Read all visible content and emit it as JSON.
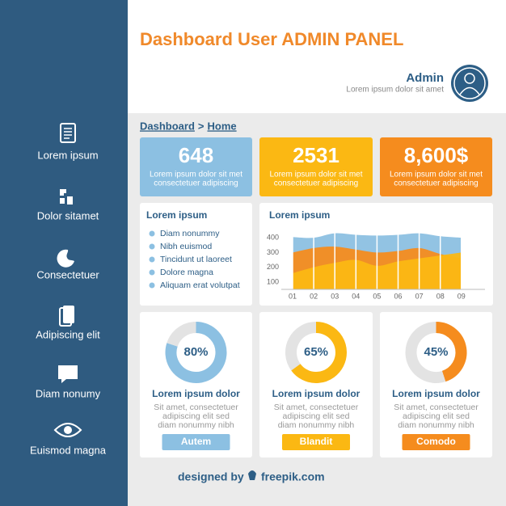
{
  "header": {
    "title": "Dashboard User ADMIN PANEL",
    "user": "Admin",
    "user_subtitle": "Lorem ipsum dolor sit amet"
  },
  "sidebar": {
    "items": [
      "Lorem ipsum",
      "Dolor sitamet",
      "Consectetuer",
      "Adipiscing elit",
      "Diam nonumy",
      "Euismod magna"
    ]
  },
  "breadcrumb": {
    "items": [
      "Dashboard",
      "Home"
    ],
    "separator": ">"
  },
  "stats": [
    {
      "value": "648",
      "text": [
        "Lorem ipsum dolor sit met",
        "consectetuer adipiscing"
      ],
      "color": "#8cc0e2"
    },
    {
      "value": "2531",
      "text": [
        "Lorem ipsum dolor sit met",
        "consectetuer adipiscing"
      ],
      "color": "#fbb813"
    },
    {
      "value": "8,600$",
      "text": [
        "Lorem ipsum dolor sit met",
        "consectetuer adipiscing"
      ],
      "color": "#f58c1e"
    }
  ],
  "list_card": {
    "title": "Lorem ipsum",
    "items": [
      "Diam nonummy",
      "Nibh euismod",
      "Tincidunt ut laoreet",
      "Dolore magna",
      "Aliquam erat volutpat"
    ]
  },
  "chart_data": [
    {
      "type": "area",
      "title": "Lorem ipsum",
      "categories": [
        "01",
        "02",
        "03",
        "04",
        "05",
        "06",
        "07",
        "08",
        "09"
      ],
      "ylim": [
        50,
        450
      ],
      "yticks": [
        100,
        200,
        300,
        400
      ],
      "series": [
        {
          "color": "#8cc0e2",
          "values": [
            405,
            400,
            430,
            420,
            415,
            420,
            430,
            410,
            400
          ]
        },
        {
          "color": "#f58c1e",
          "values": [
            300,
            330,
            340,
            320,
            300,
            310,
            330,
            290,
            260
          ]
        },
        {
          "color": "#fbb813",
          "values": [
            160,
            200,
            230,
            250,
            210,
            240,
            260,
            280,
            300
          ]
        }
      ]
    },
    {
      "type": "donut",
      "values": [
        80,
        20
      ],
      "value_labels": [
        "80%",
        null
      ],
      "colors": [
        "#8cc0e2",
        "#e3e3e3"
      ],
      "title": "Lorem ipsum dolor",
      "text": [
        "Sit amet, consectetuer",
        "adipiscing elit sed",
        "diam nonummy nibh"
      ],
      "button": "Autem"
    },
    {
      "type": "donut",
      "values": [
        65,
        35
      ],
      "value_labels": [
        "65%",
        null
      ],
      "colors": [
        "#fbb813",
        "#e3e3e3"
      ],
      "title": "Lorem ipsum dolor",
      "text": [
        "Sit amet, consectetuer",
        "adipiscing elit sed",
        "diam nonummy nibh"
      ],
      "button": "Blandit"
    },
    {
      "type": "donut",
      "values": [
        45,
        55
      ],
      "value_labels": [
        "45%",
        null
      ],
      "colors": [
        "#f58c1e",
        "#e3e3e3"
      ],
      "title": "Lorem ipsum dolor",
      "text": [
        "Sit amet, consectetuer",
        "adipiscing elit sed",
        "diam nonummy nibh"
      ],
      "button": "Comodo"
    }
  ],
  "footer": {
    "prefix": "designed by",
    "brand": "freepik.com"
  }
}
